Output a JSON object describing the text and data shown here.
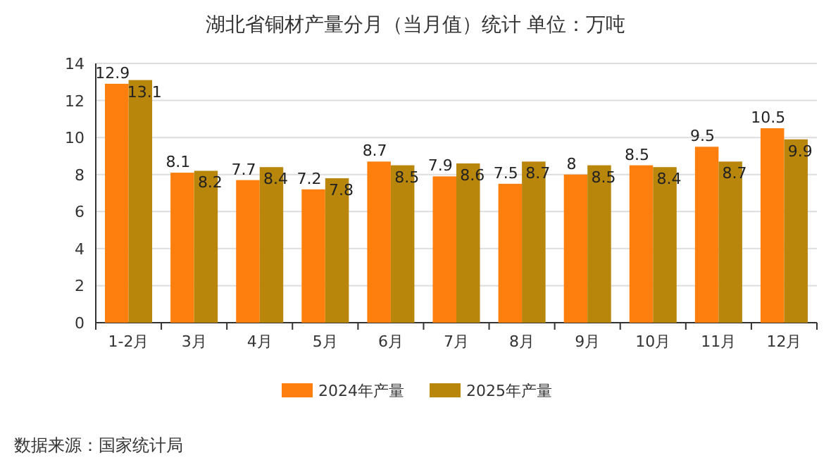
{
  "chart_data": {
    "type": "bar",
    "title": "湖北省铜材产量分月（当月值）统计  单位：万吨",
    "categories": [
      "1-2月",
      "3月",
      "4月",
      "5月",
      "6月",
      "7月",
      "8月",
      "9月",
      "10月",
      "11月",
      "12月"
    ],
    "series": [
      {
        "name": "2024年产量",
        "color": "#ff7f0e",
        "values": [
          12.9,
          8.1,
          7.7,
          7.2,
          8.7,
          7.9,
          7.5,
          8,
          8.5,
          9.5,
          10.5
        ]
      },
      {
        "name": "2025年产量",
        "color": "#b8860b",
        "values": [
          13.1,
          8.2,
          8.4,
          7.8,
          8.5,
          8.6,
          8.7,
          8.5,
          8.4,
          8.7,
          9.9
        ]
      }
    ],
    "ylim": [
      0,
      14
    ],
    "yticks": [
      0,
      2,
      4,
      6,
      8,
      10,
      12,
      14
    ],
    "grid": "y",
    "legend": "bottom",
    "data_labels": true,
    "annotations": [
      "数据来源：国家统计局"
    ]
  }
}
